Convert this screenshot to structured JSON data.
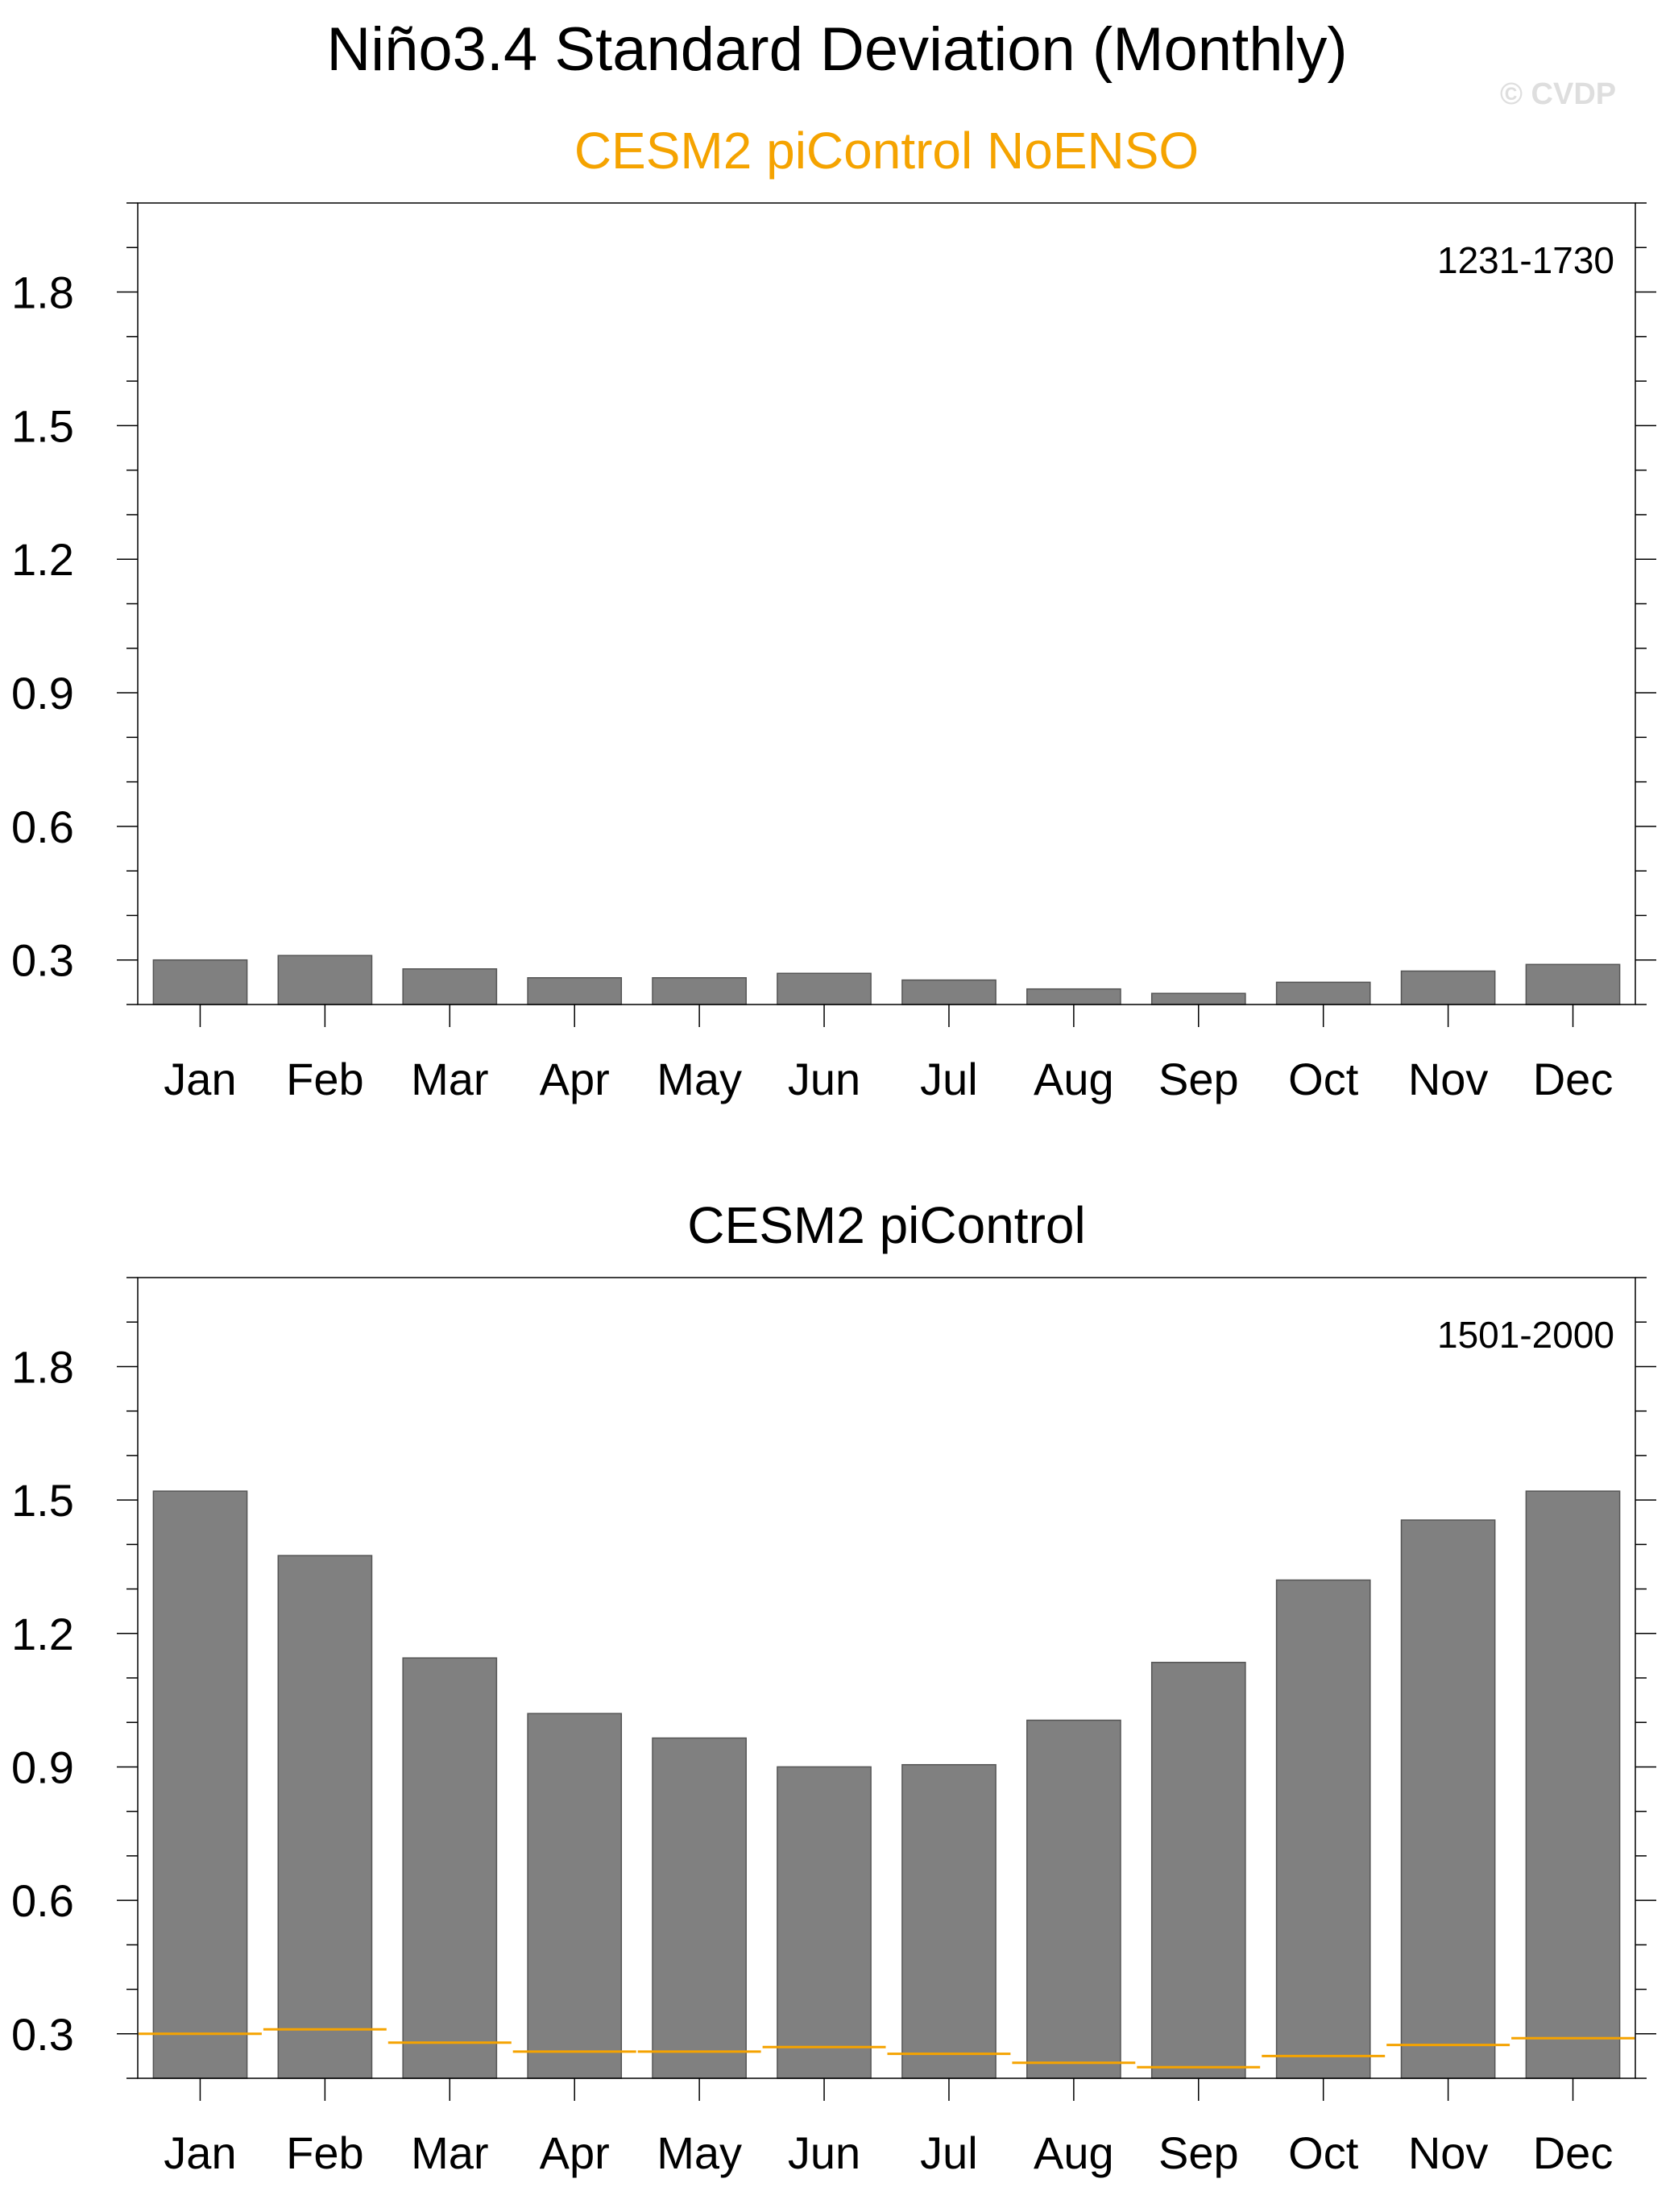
{
  "title": "Niño3.4 Standard Deviation (Monthly)",
  "watermark": "© CVDP",
  "colors": {
    "bar_fill": "#808080",
    "bar_stroke": "#555555",
    "reference_line": "#f5a300",
    "top_subtitle": "#f5a300",
    "text": "#000000"
  },
  "chart_data": [
    {
      "type": "bar",
      "title": "CESM2 piControl NoENSO",
      "period": "1231-1730",
      "categories": [
        "Jan",
        "Feb",
        "Mar",
        "Apr",
        "May",
        "Jun",
        "Jul",
        "Aug",
        "Sep",
        "Oct",
        "Nov",
        "Dec"
      ],
      "values": [
        0.3,
        0.31,
        0.28,
        0.26,
        0.26,
        0.27,
        0.255,
        0.235,
        0.225,
        0.25,
        0.275,
        0.29
      ],
      "reference": null,
      "ylim": [
        0.2,
        2.0
      ],
      "yticks": [
        "0.3",
        "0.6",
        "0.9",
        "1.2",
        "1.5",
        "1.8"
      ],
      "grid": false
    },
    {
      "type": "bar",
      "title": "CESM2 piControl",
      "period": "1501-2000",
      "categories": [
        "Jan",
        "Feb",
        "Mar",
        "Apr",
        "May",
        "Jun",
        "Jul",
        "Aug",
        "Sep",
        "Oct",
        "Nov",
        "Dec"
      ],
      "values": [
        1.52,
        1.375,
        1.145,
        1.02,
        0.965,
        0.9,
        0.905,
        1.005,
        1.135,
        1.32,
        1.455,
        1.52
      ],
      "reference": [
        0.3,
        0.31,
        0.28,
        0.26,
        0.26,
        0.27,
        0.255,
        0.235,
        0.225,
        0.25,
        0.275,
        0.29
      ],
      "ylim": [
        0.2,
        2.0
      ],
      "yticks": [
        "0.3",
        "0.6",
        "0.9",
        "1.2",
        "1.5",
        "1.8"
      ],
      "grid": false
    }
  ]
}
